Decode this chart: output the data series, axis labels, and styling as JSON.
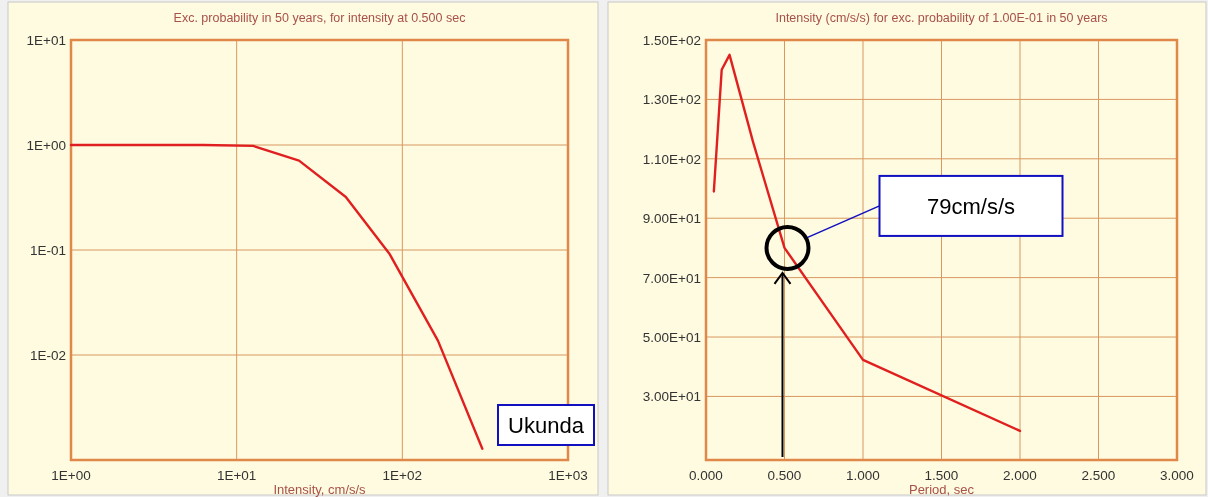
{
  "chart_data": [
    {
      "type": "line",
      "title": "Exc. probability in 50 years, for intensity at 0.500 sec",
      "xlabel": "Intensity, cm/s/s",
      "log": "xy",
      "grid": true,
      "marker": "none",
      "line_style": "solid",
      "x": [
        1,
        6.3,
        12.6,
        23.8,
        45.6,
        84,
        164,
        304
      ],
      "series": [
        {
          "color": "#e02020",
          "values": [
            1,
            1,
            0.98,
            0.71,
            0.32,
            0.091,
            0.0137,
            0.00128
          ]
        }
      ],
      "xlim": [
        1,
        1000
      ],
      "xticks": [
        {
          "value": 1,
          "label": "1E+00"
        },
        {
          "value": 10,
          "label": "1E+01"
        },
        {
          "value": 100,
          "label": "1E+02"
        },
        {
          "value": 1000,
          "label": "1E+03"
        }
      ],
      "ylim": [
        0.001,
        10
      ],
      "yticks": [
        {
          "value": 10,
          "label": "1E+01"
        },
        {
          "value": 1,
          "label": "1E+00"
        },
        {
          "value": 0.1,
          "label": "1E-01"
        },
        {
          "value": 0.01,
          "label": "1E-02"
        }
      ]
    },
    {
      "type": "line",
      "title": "Intensity (cm/s/s) for exc. probability of 1.00E-01 in 50 years",
      "xlabel": "Period, sec",
      "grid": true,
      "marker": "none",
      "line_style": "solid",
      "x": [
        0.05,
        0.1,
        0.15,
        0.3,
        0.5,
        1.0,
        2.0
      ],
      "series": [
        {
          "color": "#e02020",
          "values": [
            99,
            140,
            145,
            115.6,
            80,
            42.3,
            18.4
          ]
        }
      ],
      "xlim": [
        0,
        3
      ],
      "xticks": [
        {
          "value": 0,
          "label": "0.000"
        },
        {
          "value": 0.5,
          "label": "0.500"
        },
        {
          "value": 1,
          "label": "1.000"
        },
        {
          "value": 1.5,
          "label": "1.500"
        },
        {
          "value": 2,
          "label": "2.000"
        },
        {
          "value": 2.5,
          "label": "2.500"
        },
        {
          "value": 3,
          "label": "3.000"
        }
      ],
      "ylim": [
        8.6,
        150
      ],
      "yticks": [
        {
          "value": 150,
          "label": "1.50E+02"
        },
        {
          "value": 130,
          "label": "1.30E+02"
        },
        {
          "value": 110,
          "label": "1.10E+02"
        },
        {
          "value": 90,
          "label": "9.00E+01"
        },
        {
          "value": 70,
          "label": "7.00E+01"
        },
        {
          "value": 50,
          "label": "5.00E+01"
        },
        {
          "value": 30,
          "label": "3.00E+01"
        }
      ],
      "annotations": [
        "79cm/s/s",
        "Ukunda"
      ]
    }
  ]
}
